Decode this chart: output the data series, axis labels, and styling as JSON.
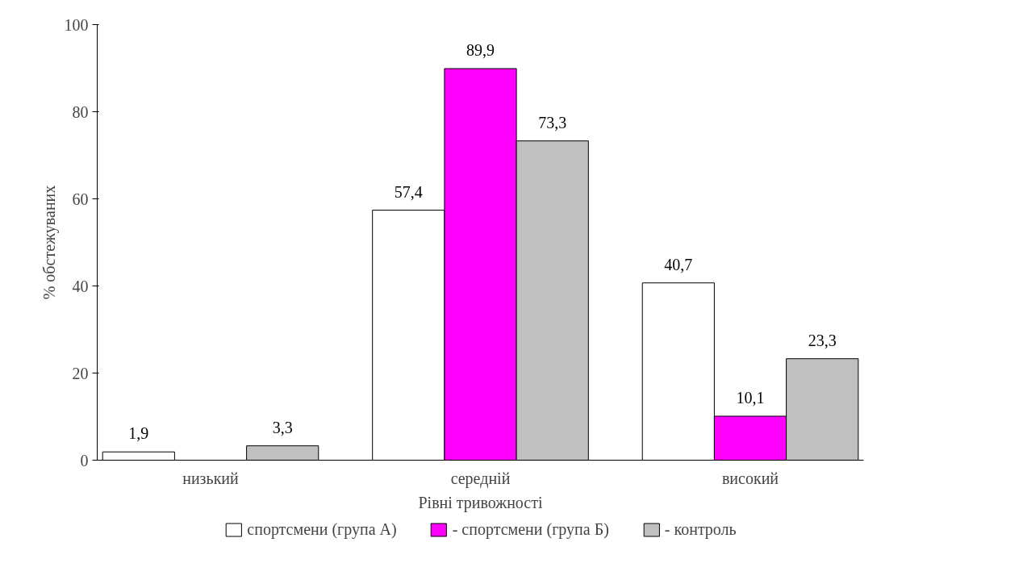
{
  "chart_data": {
    "type": "bar",
    "xlabel": "Рівні тривожності",
    "ylabel": "% обстежуваних",
    "categories": [
      "низький",
      "середній",
      "високий"
    ],
    "series": [
      {
        "name": "спортсмени (група А)",
        "color": "#ffffff",
        "values": [
          1.9,
          57.4,
          40.7
        ],
        "value_labels": [
          "1,9",
          "57,4",
          "40,7"
        ]
      },
      {
        "name": "- спортсмени (група Б)",
        "color": "#ff00ff",
        "values": [
          null,
          89.9,
          10.1
        ],
        "value_labels": [
          null,
          "89,9",
          "10,1"
        ]
      },
      {
        "name": "- контроль",
        "color": "#c0c0c0",
        "values": [
          3.3,
          73.3,
          23.3
        ],
        "value_labels": [
          "3,3",
          "73,3",
          "23,3"
        ]
      }
    ],
    "ylim": [
      0,
      100
    ],
    "yticks": [
      0,
      20,
      40,
      60,
      80,
      100
    ],
    "grid": false,
    "legend": "bottom"
  }
}
